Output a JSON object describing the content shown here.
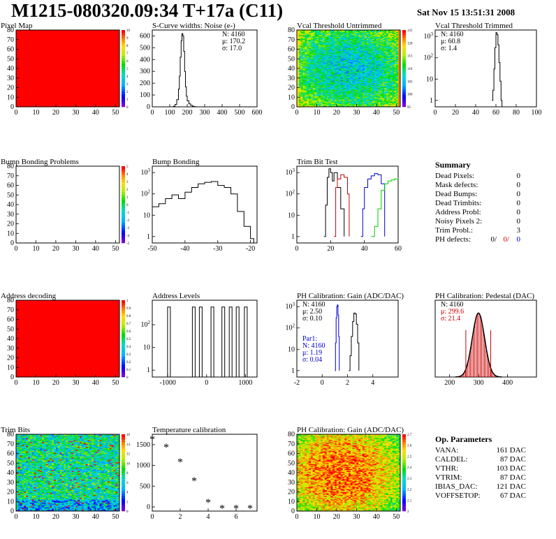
{
  "header": {
    "title": "M1215-080320.09:34 T+17a (C11)",
    "date": "Sat Nov 15 13:51:31 2008"
  },
  "chart_data": [
    {
      "type": "heatmap",
      "title": "Pixel Map",
      "xlim": [
        0,
        52
      ],
      "ylim": [
        0,
        80
      ],
      "xticks": [
        0,
        10,
        20,
        30,
        40,
        50
      ],
      "yticks": [
        0,
        10,
        20,
        30,
        40,
        50,
        60,
        70,
        80
      ],
      "fill": "uniform-red",
      "palette": {
        "min": 0,
        "max": 10,
        "labels": [
          "0",
          "1",
          "2",
          "3",
          "4",
          "5",
          "6",
          "7",
          "8",
          "9",
          "10"
        ]
      }
    },
    {
      "type": "line",
      "title": "S-Curve widths: Noise (e-)",
      "xlim": [
        0,
        600
      ],
      "ylim": [
        0,
        650
      ],
      "xticks": [
        0,
        100,
        200,
        300,
        400,
        500,
        600
      ],
      "yticks": [
        0,
        100,
        200,
        300,
        400,
        500,
        600
      ],
      "stats": [
        "N: 4160",
        "μ: 170.2",
        "σ: 17.0"
      ],
      "series": [
        {
          "x": [
            110,
            120,
            130,
            140,
            150,
            155,
            160,
            165,
            170,
            175,
            180,
            185,
            190,
            195,
            200,
            210,
            220,
            230,
            240,
            250
          ],
          "y": [
            0,
            5,
            20,
            60,
            150,
            260,
            420,
            560,
            620,
            600,
            470,
            300,
            170,
            90,
            50,
            25,
            12,
            5,
            2,
            0
          ]
        }
      ]
    },
    {
      "type": "heatmap",
      "title": "Vcal Threshold Untrimmed",
      "xlim": [
        0,
        52
      ],
      "ylim": [
        0,
        80
      ],
      "xticks": [
        0,
        10,
        20,
        30,
        40,
        50
      ],
      "yticks": [
        0,
        10,
        20,
        30,
        40,
        50,
        60,
        70,
        80
      ],
      "fill": "noise-threshold",
      "palette": {
        "labels": [
          "95",
          "100",
          "105",
          "110",
          "115",
          "120",
          "125"
        ]
      }
    },
    {
      "type": "line",
      "log_y": true,
      "title": "Vcal Threshold Trimmed",
      "xlim": [
        0,
        100
      ],
      "ylim": [
        0.5,
        2000
      ],
      "xticks": [
        0,
        20,
        40,
        60,
        80,
        100
      ],
      "yticks": [
        1,
        10,
        100,
        1000
      ],
      "stats": [
        "N: 4160",
        "μ: 60.8",
        "σ: 1.4"
      ],
      "series": [
        {
          "x": [
            56,
            57,
            58,
            59,
            60,
            61,
            62,
            63,
            64,
            65,
            66,
            67
          ],
          "y": [
            1,
            3,
            30,
            300,
            1500,
            1200,
            400,
            60,
            8,
            1,
            0.5,
            0.5
          ]
        }
      ]
    },
    {
      "type": "heatmap",
      "title": "Bump Bonding Problems",
      "xlim": [
        0,
        52
      ],
      "ylim": [
        0,
        80
      ],
      "xticks": [
        0,
        10,
        20,
        30,
        40,
        50
      ],
      "yticks": [
        0,
        10,
        20,
        30,
        40,
        50,
        60,
        70,
        80
      ],
      "fill": "empty",
      "palette": {
        "labels": [
          "-5",
          "-4",
          "-3",
          "-2",
          "-1",
          "0",
          "1",
          "2",
          "3",
          "4",
          "5"
        ]
      }
    },
    {
      "type": "line",
      "log_y": true,
      "title": "Bump Bonding",
      "xlim": [
        -50,
        -18
      ],
      "ylim": [
        0.5,
        2000
      ],
      "xticks": [
        -50,
        -40,
        -30,
        -20
      ],
      "yticks": [
        1,
        10,
        100,
        1000
      ],
      "series": [
        {
          "x": [
            -50,
            -48,
            -46,
            -44,
            -42,
            -40,
            -38,
            -36,
            -34,
            -32,
            -30,
            -28,
            -26,
            -24,
            -22,
            -20,
            -19
          ],
          "y": [
            25,
            35,
            60,
            90,
            60,
            120,
            200,
            300,
            350,
            380,
            250,
            200,
            100,
            15,
            3,
            0.8,
            0.5
          ]
        }
      ]
    },
    {
      "type": "line",
      "log_y": true,
      "title": "Trim Bit Test",
      "xlim": [
        0,
        60
      ],
      "ylim": [
        0.5,
        2000
      ],
      "xticks": [
        0,
        20,
        40,
        60
      ],
      "yticks": [
        1,
        10,
        100,
        1000
      ],
      "series": [
        {
          "color": "#000000",
          "x": [
            16,
            17,
            18,
            19,
            20,
            21,
            22,
            24,
            26,
            28
          ],
          "y": [
            1,
            30,
            600,
            1500,
            1000,
            400,
            1000,
            200,
            20,
            1
          ]
        },
        {
          "color": "#cc0000",
          "x": [
            22,
            23,
            24,
            26,
            28,
            30,
            31
          ],
          "y": [
            1,
            200,
            500,
            800,
            600,
            100,
            1
          ]
        },
        {
          "color": "#0000cc",
          "x": [
            38,
            39,
            40,
            42,
            44,
            46,
            48,
            50,
            52
          ],
          "y": [
            1,
            20,
            200,
            500,
            700,
            900,
            800,
            300,
            1
          ]
        },
        {
          "color": "#00cc00",
          "x": [
            44,
            46,
            48,
            50,
            52,
            54,
            56,
            58,
            60
          ],
          "y": [
            1,
            3,
            20,
            150,
            300,
            400,
            450,
            500,
            550
          ]
        }
      ]
    },
    {
      "type": "heatmap",
      "title": "Address decoding",
      "xlim": [
        0,
        52
      ],
      "ylim": [
        0,
        80
      ],
      "xticks": [
        0,
        10,
        20,
        30,
        40,
        50
      ],
      "yticks": [
        0,
        10,
        20,
        30,
        40,
        50,
        60,
        70,
        80
      ],
      "fill": "uniform-red",
      "palette": {
        "labels": [
          "0",
          "0.1",
          "0.2",
          "0.3",
          "0.4",
          "0.5",
          "0.6",
          "0.7",
          "0.8",
          "0.9",
          "1"
        ]
      }
    },
    {
      "type": "line",
      "log_y": true,
      "title": "Address Levels",
      "xlim": [
        -1400,
        1300
      ],
      "ylim": [
        0.5,
        1200
      ],
      "xticks": [
        -1000,
        0,
        1000
      ],
      "yticks": [
        1,
        10,
        100
      ],
      "peaks": [
        -970,
        -330,
        -150,
        150,
        430,
        620,
        800,
        1010
      ],
      "peak_height": 600
    },
    {
      "type": "line",
      "log_y": true,
      "title": "PH Calibration: Gain (ADC/DAC)",
      "xlim": [
        -2,
        6
      ],
      "ylim": [
        0.5,
        2000
      ],
      "xticks": [
        -2,
        0,
        2,
        4
      ],
      "yticks": [
        1,
        10,
        100,
        1000
      ],
      "stats": [
        "N: 4160",
        "μ: 2.50",
        "σ: 0.10"
      ],
      "stats2": [
        "Par1:",
        "N: 4160",
        "μ: 1.19",
        "σ: 0.04"
      ],
      "series": [
        {
          "color": "#000000",
          "x": [
            2.1,
            2.2,
            2.3,
            2.4,
            2.5,
            2.6,
            2.7,
            2.8,
            2.9
          ],
          "y": [
            1,
            5,
            40,
            200,
            500,
            450,
            150,
            20,
            1
          ]
        },
        {
          "color": "#0000cc",
          "x": [
            1.0,
            1.05,
            1.1,
            1.15,
            1.2,
            1.25,
            1.3,
            1.35
          ],
          "y": [
            1,
            20,
            300,
            1000,
            1200,
            400,
            40,
            1
          ]
        }
      ]
    },
    {
      "type": "bar",
      "title": "PH Calibration: Pedestal (DAC)",
      "xlim": [
        150,
        500
      ],
      "ylim": [
        0,
        90
      ],
      "xticks": [
        200,
        300,
        400
      ],
      "stats": [
        "N: 4160",
        "μ: 299.6",
        "σ: 21.4"
      ],
      "fit_mean": 299.6,
      "fit_sigma": 21.4,
      "fit_peak": 75,
      "marker_lines": [
        256,
        342
      ]
    },
    {
      "type": "heatmap",
      "title": "Trim Bits",
      "xlim": [
        0,
        52
      ],
      "ylim": [
        0,
        80
      ],
      "xticks": [
        0,
        10,
        20,
        30,
        40,
        50
      ],
      "yticks": [
        0,
        10,
        20,
        30,
        40,
        50,
        60,
        70,
        80
      ],
      "fill": "noise-trim",
      "palette": {
        "labels": [
          "0",
          "2",
          "4",
          "6",
          "8",
          "10",
          "12",
          "14",
          "16"
        ]
      }
    },
    {
      "type": "scatter",
      "title": "Temperature calibration",
      "xlim": [
        0,
        7.5
      ],
      "ylim": [
        -100,
        1750
      ],
      "xticks": [
        0,
        2,
        4,
        6
      ],
      "yticks": [
        0,
        500,
        1000,
        1500
      ],
      "x": [
        0,
        1,
        2,
        3,
        4,
        5,
        6,
        7
      ],
      "y": [
        1620,
        1430,
        1080,
        620,
        100,
        -40,
        -40,
        -40
      ]
    },
    {
      "type": "heatmap",
      "title": "PH Calibration: Gain (ADC/DAC)",
      "xlim": [
        0,
        52
      ],
      "ylim": [
        0,
        80
      ],
      "xticks": [
        0,
        10,
        20,
        30,
        40,
        50
      ],
      "yticks": [
        0,
        10,
        20,
        30,
        40,
        50,
        60,
        70,
        80
      ],
      "fill": "noise-gain",
      "palette": {
        "labels": [
          "2",
          "2.1",
          "2.2",
          "2.3",
          "2.4",
          "2.5",
          "2.6",
          "2.7"
        ]
      }
    }
  ],
  "summary": {
    "heading": "Summary",
    "rows": [
      {
        "label": "Dead Pixels:",
        "value": "0"
      },
      {
        "label": "Mask defects:",
        "value": "0"
      },
      {
        "label": "Dead Bumps:",
        "value": "0"
      },
      {
        "label": "Dead Trimbits:",
        "value": "0"
      },
      {
        "label": "Address Probl:",
        "value": "0"
      },
      {
        "label": "Noisy Pixels 2:",
        "value": "0"
      },
      {
        "label": "Trim Probl.:",
        "value": "3"
      }
    ],
    "ph_label": "PH defects:",
    "ph_values": [
      "0/",
      "0/",
      "0"
    ],
    "ph_colors": [
      "#000000",
      "#cc0000",
      "#0000cc"
    ]
  },
  "params": {
    "heading": "Op. Parameters",
    "rows": [
      {
        "label": "VANA:",
        "value": "161 DAC"
      },
      {
        "label": "CALDEL:",
        "value": "87 DAC"
      },
      {
        "label": "VTHR:",
        "value": "103 DAC"
      },
      {
        "label": "VTRIM:",
        "value": "87 DAC"
      },
      {
        "label": "IBIAS_DAC:",
        "value": "121 DAC"
      },
      {
        "label": "VOFFSETOP:",
        "value": "67 DAC"
      }
    ]
  }
}
